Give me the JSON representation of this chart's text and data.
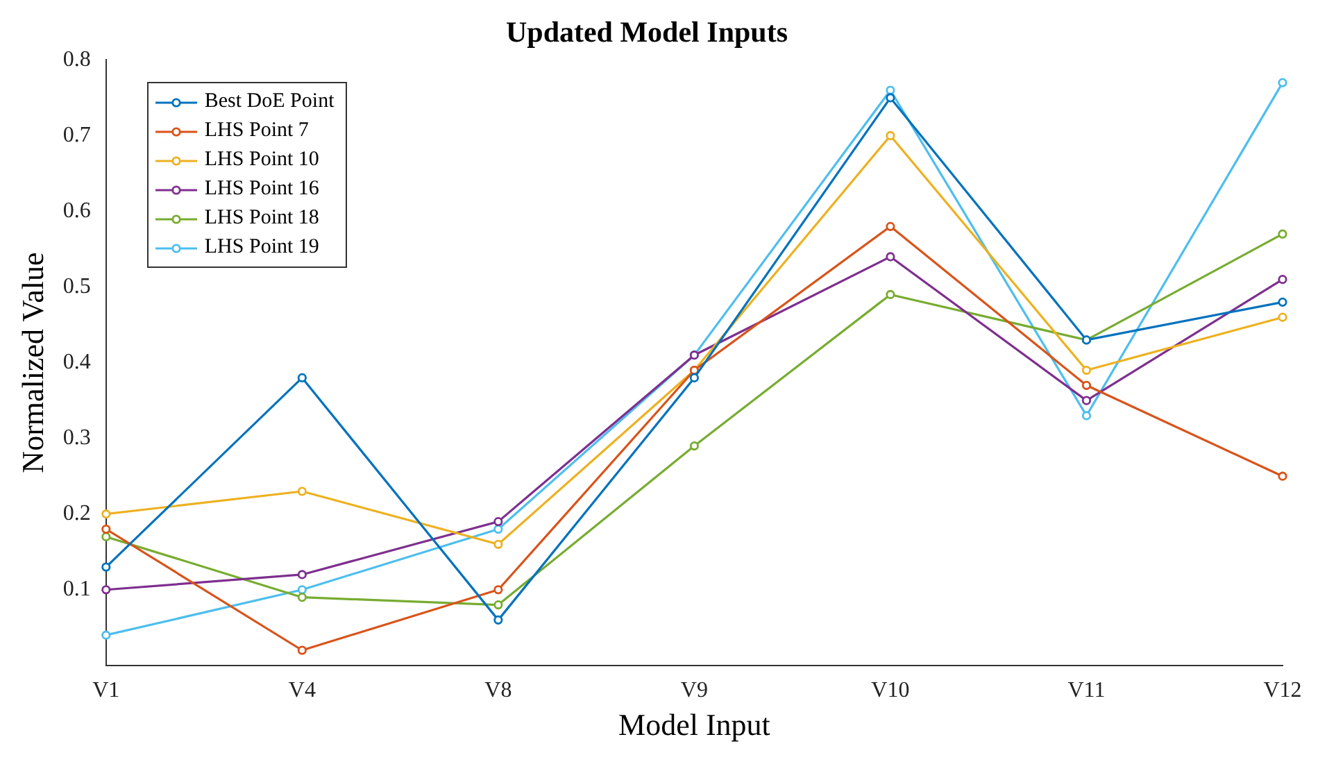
{
  "chart_data": {
    "type": "line",
    "title": "Updated Model Inputs",
    "xlabel": "Model Input",
    "ylabel": "Normalized Value",
    "categories": [
      "V1",
      "V4",
      "V8",
      "V9",
      "V10",
      "V11",
      "V12"
    ],
    "series": [
      {
        "name": "Best DoE Point",
        "color": "#0072bd",
        "values": [
          0.13,
          0.38,
          0.06,
          0.38,
          0.75,
          0.43,
          0.48
        ]
      },
      {
        "name": "LHS Point 7",
        "color": "#d95319",
        "values": [
          0.18,
          0.02,
          0.1,
          0.39,
          0.58,
          0.37,
          0.25
        ]
      },
      {
        "name": "LHS Point 10",
        "color": "#edb120",
        "values": [
          0.2,
          0.23,
          0.16,
          0.39,
          0.7,
          0.39,
          0.46
        ]
      },
      {
        "name": "LHS Point 16",
        "color": "#7e2f8e",
        "values": [
          0.1,
          0.12,
          0.19,
          0.41,
          0.54,
          0.35,
          0.51
        ]
      },
      {
        "name": "LHS Point 18",
        "color": "#77ac30",
        "values": [
          0.17,
          0.09,
          0.08,
          0.29,
          0.49,
          0.43,
          0.57
        ]
      },
      {
        "name": "LHS Point 19",
        "color": "#4dbeee",
        "values": [
          0.04,
          0.1,
          0.18,
          0.41,
          0.76,
          0.33,
          0.77
        ]
      }
    ],
    "ylim": [
      0,
      0.8
    ],
    "yticks": [
      0.1,
      0.2,
      0.3,
      0.4,
      0.5,
      0.6,
      0.7,
      0.8
    ],
    "grid": false,
    "legend": "top left",
    "marker": "circle",
    "line_style": "solid"
  }
}
